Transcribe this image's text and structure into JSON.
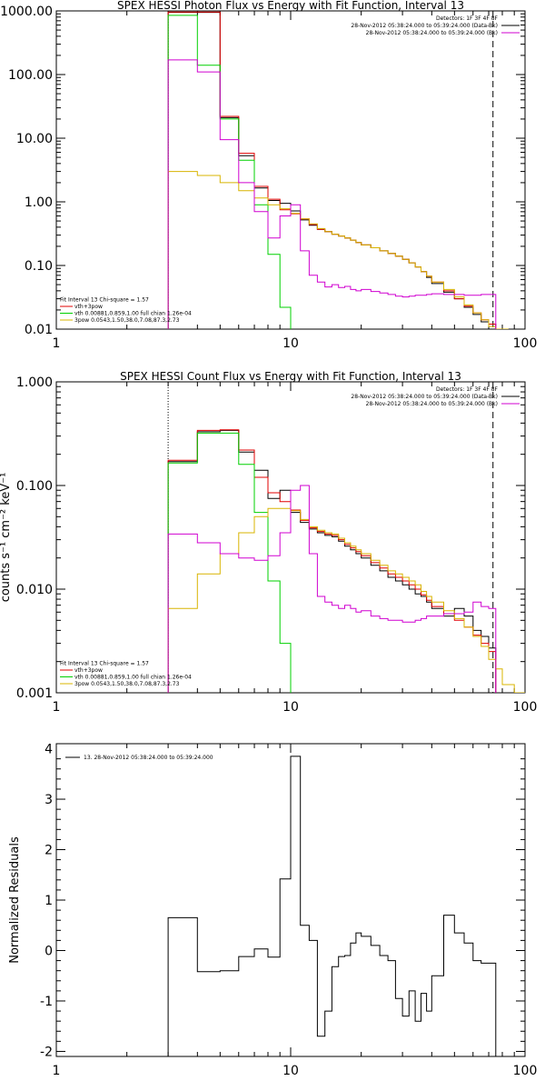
{
  "colors": {
    "black": "#000000",
    "red": "#e00000",
    "green": "#00d000",
    "magenta": "#d000d0",
    "yellow": "#d8b400",
    "background": "#ffffff"
  },
  "chart_data": [
    {
      "type": "line",
      "title": "SPEX HESSI Photon Flux vs Energy with Fit Function, Interval 13",
      "xscale": "log",
      "yscale": "log",
      "xlim": [
        1,
        100
      ],
      "ylim": [
        0.01,
        1000
      ],
      "xticks": [
        {
          "v": 1,
          "label": "1"
        },
        {
          "v": 10,
          "label": "10"
        },
        {
          "v": 100,
          "label": "100"
        }
      ],
      "yticks": [
        {
          "v": 0.01,
          "label": "0.01"
        },
        {
          "v": 0.1,
          "label": "0.10"
        },
        {
          "v": 1,
          "label": "1.00"
        },
        {
          "v": 10,
          "label": "10.00"
        },
        {
          "v": 100,
          "label": "100.00"
        },
        {
          "v": 1000,
          "label": "1000.00"
        }
      ],
      "vlines": [
        {
          "x": 3,
          "style": "dotted"
        },
        {
          "x": 73,
          "style": "dashed"
        }
      ],
      "legend_top": {
        "position": "top-right",
        "lines": [
          {
            "text": "Detectors: 1F 3F 4F 8F",
            "color": null
          },
          {
            "text": "28-Nov-2012 05:38:24.000 to 05:39:24.000 (Data-Bk)",
            "color": "black"
          },
          {
            "text": "28-Nov-2012 05:38:24.000 to 05:39:24.000 (Bk)",
            "color": "magenta"
          }
        ]
      },
      "legend_bottom": {
        "position": "bottom-left",
        "lines": [
          {
            "text": "Fit Interval 13    Chi-square = 1.57",
            "color": null
          },
          {
            "text": "vth+3pow",
            "color": "red"
          },
          {
            "text": "vth 0.00881,0.859,1.00  full chian 1.26e-04",
            "color": "green"
          },
          {
            "text": "3pow 0.0543,1.50,38.0,7.08,87.3,2.73",
            "color": "yellow"
          }
        ]
      },
      "series": [
        {
          "color": "black",
          "edges": [
            3,
            4,
            5,
            6,
            7,
            8,
            9,
            10,
            11,
            12,
            13,
            14,
            15,
            16,
            17,
            18,
            19,
            20,
            22,
            24,
            26,
            28,
            30,
            32,
            34,
            36,
            38,
            40,
            45,
            50,
            55,
            60,
            65,
            70,
            75
          ],
          "values": [
            950,
            950,
            21,
            5.3,
            1.65,
            1.05,
            0.95,
            0.72,
            0.52,
            0.43,
            0.37,
            0.34,
            0.31,
            0.29,
            0.27,
            0.25,
            0.23,
            0.21,
            0.19,
            0.17,
            0.155,
            0.14,
            0.125,
            0.11,
            0.095,
            0.08,
            0.065,
            0.052,
            0.038,
            0.03,
            0.022,
            0.017,
            0.013,
            0.012
          ]
        },
        {
          "color": "red",
          "edges": [
            3,
            4,
            5,
            6,
            7,
            8,
            9,
            10,
            11,
            12,
            13,
            14,
            15,
            16,
            17,
            18,
            19,
            20,
            22,
            24,
            26,
            28,
            30,
            32,
            34,
            36,
            38,
            40,
            45,
            50,
            55,
            60,
            65,
            70,
            75
          ],
          "values": [
            960,
            960,
            22,
            5.8,
            1.75,
            1.1,
            0.75,
            0.65,
            0.54,
            0.44,
            0.37,
            0.34,
            0.31,
            0.29,
            0.27,
            0.25,
            0.23,
            0.21,
            0.19,
            0.17,
            0.155,
            0.14,
            0.125,
            0.11,
            0.095,
            0.08,
            0.068,
            0.055,
            0.04,
            0.03,
            0.023,
            0.018,
            0.014,
            0.012
          ]
        },
        {
          "color": "green",
          "edges": [
            3,
            4,
            5,
            6,
            7,
            8,
            9,
            10
          ],
          "values": [
            850,
            140,
            20,
            4.5,
            0.9,
            0.15,
            0.022
          ]
        },
        {
          "color": "yellow",
          "edges": [
            3,
            4,
            5,
            6,
            7,
            8,
            9,
            10,
            11,
            12,
            13,
            14,
            15,
            16,
            17,
            18,
            19,
            20,
            22,
            24,
            26,
            28,
            30,
            32,
            34,
            36,
            38,
            40,
            45,
            50,
            55,
            60,
            65,
            70,
            75,
            85
          ],
          "values": [
            3,
            2.6,
            2.0,
            1.5,
            1.15,
            0.9,
            0.78,
            0.66,
            0.54,
            0.45,
            0.38,
            0.34,
            0.31,
            0.29,
            0.27,
            0.25,
            0.23,
            0.21,
            0.19,
            0.17,
            0.155,
            0.14,
            0.125,
            0.11,
            0.095,
            0.08,
            0.068,
            0.055,
            0.042,
            0.032,
            0.024,
            0.018,
            0.014,
            0.011,
            0.01
          ]
        },
        {
          "color": "magenta",
          "edges": [
            3,
            4,
            5,
            6,
            7,
            8,
            9,
            10,
            11,
            12,
            13,
            14,
            15,
            16,
            17,
            18,
            19,
            20,
            22,
            24,
            26,
            28,
            30,
            32,
            34,
            36,
            38,
            40,
            45,
            50,
            55,
            60,
            65,
            70,
            75
          ],
          "values": [
            170,
            110,
            9.5,
            2.0,
            0.7,
            0.27,
            0.6,
            0.9,
            0.17,
            0.07,
            0.055,
            0.046,
            0.05,
            0.045,
            0.047,
            0.042,
            0.04,
            0.042,
            0.039,
            0.037,
            0.035,
            0.033,
            0.032,
            0.033,
            0.034,
            0.034,
            0.035,
            0.036,
            0.035,
            0.035,
            0.034,
            0.034,
            0.035,
            0.035
          ]
        }
      ]
    },
    {
      "type": "line",
      "title": "SPEX HESSI Count Flux vs Energy with Fit Function, Interval 13",
      "ylabel": "counts s⁻¹ cm⁻² keV⁻¹",
      "xscale": "log",
      "yscale": "log",
      "xlim": [
        1,
        100
      ],
      "ylim": [
        0.001,
        1
      ],
      "xticks": [
        {
          "v": 1,
          "label": "1"
        },
        {
          "v": 10,
          "label": "10"
        },
        {
          "v": 100,
          "label": "100"
        }
      ],
      "yticks": [
        {
          "v": 0.001,
          "label": "0.001"
        },
        {
          "v": 0.01,
          "label": "0.010"
        },
        {
          "v": 0.1,
          "label": "0.100"
        },
        {
          "v": 1,
          "label": "1.000"
        }
      ],
      "vlines": [
        {
          "x": 3,
          "style": "dotted"
        },
        {
          "x": 73,
          "style": "dashed"
        }
      ],
      "legend_top": {
        "position": "top-right",
        "lines": [
          {
            "text": "Detectors: 1F 3F 4F 8F",
            "color": null
          },
          {
            "text": "28-Nov-2012 05:38:24.000 to 05:39:24.000 (Data-Bk)",
            "color": "black"
          },
          {
            "text": "28-Nov-2012 05:38:24.000 to 05:39:24.000 (Bk)",
            "color": "magenta"
          }
        ]
      },
      "legend_bottom": {
        "position": "bottom-left",
        "lines": [
          {
            "text": "Fit Interval 13    Chi-square = 1.57",
            "color": null
          },
          {
            "text": "vth+3pow",
            "color": "red"
          },
          {
            "text": "vth 0.00881,0.859,1.00  full chian 1.26e-04",
            "color": "green"
          },
          {
            "text": "3pow 0.0543,1.50,38.0,7.08,87.3,2.73",
            "color": "yellow"
          }
        ]
      },
      "series": [
        {
          "color": "black",
          "edges": [
            3,
            4,
            5,
            6,
            7,
            8,
            9,
            10,
            11,
            12,
            13,
            14,
            15,
            16,
            17,
            18,
            19,
            20,
            22,
            24,
            26,
            28,
            30,
            32,
            34,
            36,
            38,
            40,
            45,
            50,
            55,
            60,
            65,
            70,
            75
          ],
          "values": [
            0.17,
            0.33,
            0.34,
            0.21,
            0.14,
            0.075,
            0.09,
            0.055,
            0.044,
            0.038,
            0.035,
            0.033,
            0.032,
            0.029,
            0.026,
            0.024,
            0.022,
            0.02,
            0.017,
            0.015,
            0.013,
            0.012,
            0.011,
            0.01,
            0.009,
            0.0085,
            0.0075,
            0.0065,
            0.0055,
            0.0065,
            0.0055,
            0.004,
            0.0035,
            0.0027
          ]
        },
        {
          "color": "red",
          "edges": [
            3,
            4,
            5,
            6,
            7,
            8,
            9,
            10,
            11,
            12,
            13,
            14,
            15,
            16,
            17,
            18,
            19,
            20,
            22,
            24,
            26,
            28,
            30,
            32,
            34,
            36,
            38,
            40,
            45,
            50,
            55,
            60,
            65,
            70,
            75
          ],
          "values": [
            0.175,
            0.34,
            0.345,
            0.22,
            0.12,
            0.085,
            0.07,
            0.058,
            0.046,
            0.039,
            0.036,
            0.034,
            0.033,
            0.03,
            0.027,
            0.025,
            0.023,
            0.021,
            0.018,
            0.016,
            0.014,
            0.013,
            0.012,
            0.011,
            0.01,
            0.0088,
            0.0078,
            0.0068,
            0.0058,
            0.005,
            0.0043,
            0.0036,
            0.003,
            0.0025
          ]
        },
        {
          "color": "green",
          "edges": [
            3,
            4,
            5,
            6,
            7,
            8,
            9,
            10
          ],
          "values": [
            0.165,
            0.32,
            0.32,
            0.16,
            0.055,
            0.012,
            0.003
          ]
        },
        {
          "color": "yellow",
          "edges": [
            3,
            4,
            5,
            6,
            7,
            8,
            9,
            10,
            11,
            12,
            13,
            14,
            15,
            16,
            17,
            18,
            19,
            20,
            22,
            24,
            26,
            28,
            30,
            32,
            34,
            36,
            38,
            40,
            45,
            50,
            55,
            60,
            65,
            70,
            75,
            80,
            90,
            100
          ],
          "values": [
            0.0065,
            0.014,
            0.022,
            0.035,
            0.05,
            0.06,
            0.06,
            0.057,
            0.047,
            0.04,
            0.037,
            0.035,
            0.034,
            0.031,
            0.028,
            0.026,
            0.024,
            0.022,
            0.019,
            0.017,
            0.015,
            0.014,
            0.013,
            0.012,
            0.011,
            0.0095,
            0.0085,
            0.0075,
            0.0062,
            0.0052,
            0.0043,
            0.0035,
            0.0028,
            0.0021,
            0.0017,
            0.0012,
            0.001
          ]
        },
        {
          "color": "magenta",
          "edges": [
            3,
            4,
            5,
            6,
            7,
            8,
            9,
            10,
            11,
            12,
            13,
            14,
            15,
            16,
            17,
            18,
            19,
            20,
            22,
            24,
            26,
            28,
            30,
            32,
            34,
            36,
            38,
            40,
            45,
            50,
            55,
            60,
            65,
            70,
            75
          ],
          "values": [
            0.034,
            0.028,
            0.022,
            0.02,
            0.019,
            0.021,
            0.035,
            0.09,
            0.1,
            0.022,
            0.0085,
            0.0075,
            0.007,
            0.0065,
            0.007,
            0.0065,
            0.006,
            0.0062,
            0.0055,
            0.0052,
            0.005,
            0.005,
            0.0048,
            0.0048,
            0.005,
            0.0052,
            0.0055,
            0.0055,
            0.0058,
            0.0058,
            0.006,
            0.0075,
            0.0068,
            0.0065
          ]
        }
      ]
    },
    {
      "type": "line",
      "ylabel": "Normalized Residuals",
      "xscale": "log",
      "yscale": "linear",
      "xlim": [
        1,
        100
      ],
      "ylim": [
        -2.1,
        4.1
      ],
      "xticks": [
        {
          "v": 1,
          "label": "1"
        },
        {
          "v": 10,
          "label": "10"
        },
        {
          "v": 100,
          "label": "100"
        }
      ],
      "yticks": [
        {
          "v": -2,
          "label": "-2"
        },
        {
          "v": -1,
          "label": "-1"
        },
        {
          "v": 0,
          "label": "0"
        },
        {
          "v": 1,
          "label": "1"
        },
        {
          "v": 2,
          "label": "2"
        },
        {
          "v": 3,
          "label": "3"
        },
        {
          "v": 4,
          "label": "4"
        }
      ],
      "legend_top": {
        "position": "top-left",
        "lines": [
          {
            "text": "13. 28-Nov-2012 05:38:24.000 to 05:39:24.000",
            "color": "black"
          }
        ]
      },
      "series": [
        {
          "color": "black",
          "edges": [
            3,
            4,
            5,
            6,
            7,
            8,
            9,
            10,
            11,
            12,
            13,
            14,
            15,
            16,
            17,
            18,
            19,
            20,
            22,
            24,
            26,
            28,
            30,
            32,
            34,
            36,
            38,
            40,
            45,
            50,
            55,
            60,
            65,
            70,
            75
          ],
          "values": [
            0.65,
            -0.42,
            -0.4,
            -0.12,
            0.03,
            -0.13,
            1.42,
            3.85,
            0.5,
            0.2,
            -1.7,
            -1.2,
            -0.32,
            -0.12,
            -0.1,
            0.15,
            0.35,
            0.28,
            0.1,
            -0.1,
            -0.2,
            -0.95,
            -1.3,
            -0.8,
            -1.4,
            -0.85,
            -1.2,
            -0.5,
            0.7,
            0.35,
            0.15,
            -0.2,
            -0.25,
            -0.25
          ]
        }
      ]
    }
  ]
}
